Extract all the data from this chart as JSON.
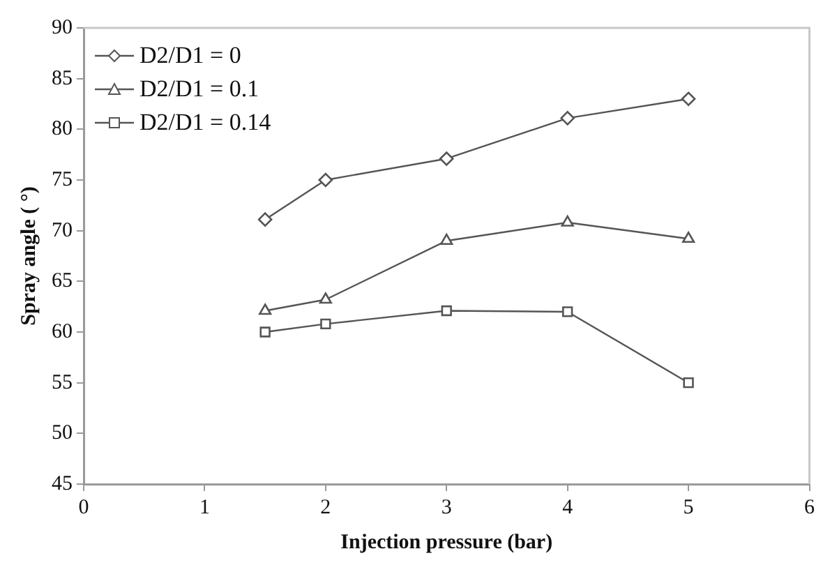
{
  "chart_data": {
    "type": "line",
    "xlabel": "Injection pressure (bar)",
    "ylabel": "Spray angle ( °)",
    "xlim": [
      0,
      6
    ],
    "xticks": [
      0,
      1,
      2,
      3,
      4,
      5,
      6
    ],
    "ylim": [
      45,
      90
    ],
    "yticks": [
      45,
      50,
      55,
      60,
      65,
      70,
      75,
      80,
      85,
      90
    ],
    "grid": false,
    "legend": "top left",
    "line_style": "solid",
    "series": [
      {
        "name": "D2/D1 = 0",
        "color": "#555555",
        "marker": "diamond",
        "x": [
          1.5,
          2,
          3,
          4,
          5
        ],
        "values": [
          71.1,
          75,
          77.1,
          81.1,
          83
        ]
      },
      {
        "name": "D2/D1 = 0.1",
        "color": "#555555",
        "marker": "triangle",
        "x": [
          1.5,
          2,
          3,
          4,
          5
        ],
        "values": [
          62.1,
          63.2,
          69,
          70.8,
          69.2
        ]
      },
      {
        "name": "D2/D1 = 0.14",
        "color": "#555555",
        "marker": "square",
        "x": [
          1.5,
          2,
          3,
          4,
          5
        ],
        "values": [
          60,
          60.8,
          62.1,
          62,
          55
        ]
      }
    ]
  }
}
